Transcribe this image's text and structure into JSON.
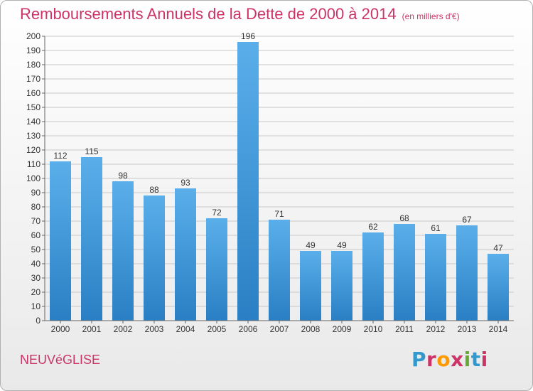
{
  "header": {
    "title": "Remboursements Annuels de la Dette de 2000 à 2014",
    "unit": "(en milliers d'€)"
  },
  "footer": {
    "commune": "NEUVéGLISE",
    "logo": "Proxiti",
    "logo_colors": [
      "#3399cc",
      "#cc3366",
      "#ff9900",
      "#cc3366",
      "#66aa33",
      "#3399cc",
      "#cc3366"
    ]
  },
  "chart_data": {
    "type": "bar",
    "categories": [
      "2000",
      "2001",
      "2002",
      "2003",
      "2004",
      "2005",
      "2006",
      "2007",
      "2008",
      "2009",
      "2010",
      "2011",
      "2012",
      "2013",
      "2014"
    ],
    "values": [
      112,
      115,
      98,
      88,
      93,
      72,
      196,
      71,
      49,
      49,
      62,
      68,
      61,
      67,
      47
    ],
    "title": "Remboursements Annuels de la Dette de 2000 à 2014",
    "ylim": [
      0,
      200
    ],
    "ytick_step": 10,
    "grid": true,
    "bar_color": "#3d9be0",
    "title_color": "#cc3366"
  }
}
